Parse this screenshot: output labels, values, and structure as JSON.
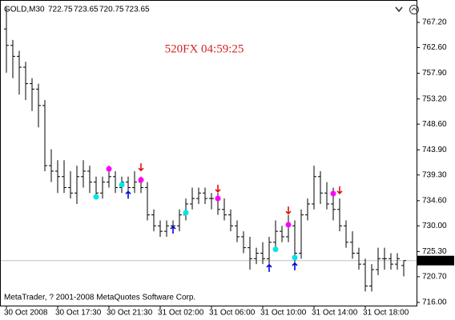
{
  "chart_data": {
    "type": "ohlc",
    "title": "GOLD,M30",
    "header_values": [
      722.75,
      723.65,
      720.75,
      723.65
    ],
    "watermark": "520FX 04:59:25",
    "footer": "MetaTrader, ? 2001-2008 MetaQuotes Software Corp.",
    "current_price": 723.65,
    "ylim": [
      716.0,
      767.2
    ],
    "yticks": [
      {
        "value": 767.2,
        "label": "767.20"
      },
      {
        "value": 762.6,
        "label": "762.60"
      },
      {
        "value": 757.9,
        "label": "757.90"
      },
      {
        "value": 753.2,
        "label": "753.20"
      },
      {
        "value": 748.6,
        "label": "748.60"
      },
      {
        "value": 743.9,
        "label": "743.90"
      },
      {
        "value": 739.3,
        "label": "739.30"
      },
      {
        "value": 734.6,
        "label": "734.60"
      },
      {
        "value": 730.0,
        "label": "730.00"
      },
      {
        "value": 725.3,
        "label": "725.30"
      },
      {
        "value": 720.7,
        "label": "720.70"
      },
      {
        "value": 716.0,
        "label": "716.00"
      }
    ],
    "categories": [
      "30 Oct 2008",
      null,
      null,
      null,
      null,
      null,
      null,
      null,
      "30 Oct 17:30",
      null,
      null,
      null,
      null,
      null,
      null,
      null,
      "30 Oct 21:30",
      null,
      null,
      null,
      null,
      null,
      null,
      null,
      "31 Oct 02:00",
      null,
      null,
      null,
      null,
      null,
      null,
      null,
      "31 Oct 06:00",
      null,
      null,
      null,
      null,
      null,
      null,
      null,
      "31 Oct 10:00",
      null,
      null,
      null,
      null,
      null,
      null,
      null,
      "31 Oct 14:00",
      null,
      null,
      null,
      null,
      null,
      null,
      null,
      "31 Oct 18:00",
      null,
      null,
      null,
      null,
      null,
      null
    ],
    "ohlc": [
      [
        766,
        770,
        758,
        763
      ],
      [
        763,
        764,
        757,
        761
      ],
      [
        761,
        762,
        754,
        759
      ],
      [
        759,
        760,
        753,
        756
      ],
      [
        756,
        757,
        751,
        755
      ],
      [
        755,
        756,
        748,
        752
      ],
      [
        752,
        753,
        740,
        741
      ],
      [
        741,
        744,
        738,
        740
      ],
      [
        740,
        742,
        736,
        739
      ],
      [
        739,
        742,
        736,
        737
      ],
      [
        737,
        740,
        735,
        736
      ],
      [
        736,
        741,
        734,
        739
      ],
      [
        739,
        742,
        737,
        740
      ],
      [
        740,
        741,
        736,
        738
      ],
      [
        738,
        739,
        735,
        736
      ],
      [
        736,
        739,
        735,
        738
      ],
      [
        738,
        741,
        737,
        739
      ],
      [
        739,
        740,
        736,
        737
      ],
      [
        737,
        739,
        736,
        738
      ],
      [
        738,
        739,
        735,
        737
      ],
      [
        737,
        740,
        736,
        738
      ],
      [
        738,
        739,
        736,
        737
      ],
      [
        737,
        738,
        731,
        732
      ],
      [
        732,
        733,
        729,
        730
      ],
      [
        730,
        731,
        728,
        729
      ],
      [
        729,
        731,
        728,
        730
      ],
      [
        730,
        731,
        729,
        730
      ],
      [
        730,
        733,
        729,
        732
      ],
      [
        732,
        735,
        731,
        734
      ],
      [
        734,
        737,
        733,
        735
      ],
      [
        735,
        737,
        734,
        736
      ],
      [
        736,
        737,
        734,
        735
      ],
      [
        735,
        736,
        733,
        735
      ],
      [
        735,
        736,
        732,
        733
      ],
      [
        733,
        735,
        731,
        732
      ],
      [
        732,
        733,
        729,
        730
      ],
      [
        730,
        731,
        727,
        728
      ],
      [
        728,
        729,
        725,
        726
      ],
      [
        726,
        728,
        722,
        724
      ],
      [
        724,
        726,
        723,
        725
      ],
      [
        725,
        727,
        723,
        724
      ],
      [
        724,
        728,
        723,
        727
      ],
      [
        727,
        731,
        726,
        729
      ],
      [
        729,
        730,
        727,
        728
      ],
      [
        728,
        732,
        727,
        730
      ],
      [
        730,
        731,
        723,
        725
      ],
      [
        725,
        733,
        724,
        732
      ],
      [
        732,
        735,
        731,
        734
      ],
      [
        734,
        741,
        733,
        739
      ],
      [
        739,
        740,
        734,
        736
      ],
      [
        736,
        738,
        733,
        734
      ],
      [
        734,
        737,
        731,
        733
      ],
      [
        733,
        735,
        729,
        730
      ],
      [
        730,
        731,
        726,
        727
      ],
      [
        727,
        729,
        724,
        725
      ],
      [
        725,
        726,
        722,
        723
      ],
      [
        723,
        724,
        718,
        719
      ],
      [
        719,
        723,
        718,
        722
      ],
      [
        722,
        726,
        721,
        724
      ],
      [
        724,
        726,
        722,
        724
      ],
      [
        724,
        725,
        722,
        723
      ],
      [
        723,
        725,
        722,
        724
      ],
      [
        722.75,
        723.65,
        720.75,
        723.65
      ]
    ],
    "signals": [
      {
        "color": "#ff00ff",
        "shape": "dot",
        "values": [
          null,
          null,
          null,
          null,
          null,
          null,
          null,
          null,
          null,
          null,
          null,
          null,
          null,
          null,
          null,
          null,
          740.4,
          null,
          null,
          null,
          null,
          738.4,
          null,
          null,
          null,
          null,
          null,
          null,
          null,
          null,
          null,
          null,
          null,
          735.0,
          null,
          null,
          null,
          null,
          null,
          null,
          null,
          null,
          null,
          null,
          730.2,
          null,
          null,
          null,
          null,
          null,
          null,
          735.9,
          null,
          null,
          null,
          null,
          null,
          null,
          null,
          null,
          null,
          null,
          null
        ]
      },
      {
        "color": "#00e5e5",
        "shape": "dot",
        "values": [
          null,
          null,
          null,
          null,
          null,
          null,
          null,
          null,
          null,
          null,
          null,
          null,
          null,
          null,
          735.3,
          null,
          null,
          null,
          737.5,
          null,
          null,
          null,
          null,
          null,
          null,
          null,
          null,
          null,
          732.4,
          null,
          null,
          null,
          null,
          null,
          null,
          null,
          null,
          null,
          null,
          null,
          null,
          null,
          725.7,
          null,
          null,
          724.2,
          null,
          null,
          null,
          null,
          null,
          null,
          null,
          null,
          null,
          null,
          null,
          null,
          null,
          null,
          null,
          null,
          null
        ]
      },
      {
        "color": "#e01010",
        "shape": "down",
        "values": [
          null,
          null,
          null,
          null,
          null,
          null,
          null,
          null,
          null,
          null,
          null,
          null,
          null,
          null,
          null,
          null,
          null,
          null,
          null,
          null,
          null,
          740.7,
          null,
          null,
          null,
          null,
          null,
          null,
          null,
          null,
          null,
          null,
          null,
          736.8,
          null,
          null,
          null,
          null,
          null,
          null,
          null,
          null,
          null,
          null,
          732.8,
          null,
          null,
          null,
          null,
          null,
          null,
          null,
          736.5,
          null,
          null,
          null,
          null,
          null,
          null,
          null,
          null,
          null,
          null
        ]
      },
      {
        "color": "#0000e0",
        "shape": "up",
        "values": [
          null,
          null,
          null,
          null,
          null,
          null,
          null,
          null,
          null,
          null,
          null,
          null,
          null,
          null,
          null,
          null,
          null,
          null,
          null,
          735.7,
          null,
          null,
          null,
          null,
          null,
          null,
          729.3,
          null,
          null,
          null,
          null,
          null,
          null,
          null,
          null,
          null,
          null,
          null,
          null,
          null,
          null,
          722.3,
          null,
          null,
          null,
          722.6,
          null,
          null,
          null,
          null,
          null,
          null,
          null,
          null,
          null,
          null,
          null,
          null,
          null,
          null,
          null,
          null,
          null
        ]
      }
    ]
  }
}
